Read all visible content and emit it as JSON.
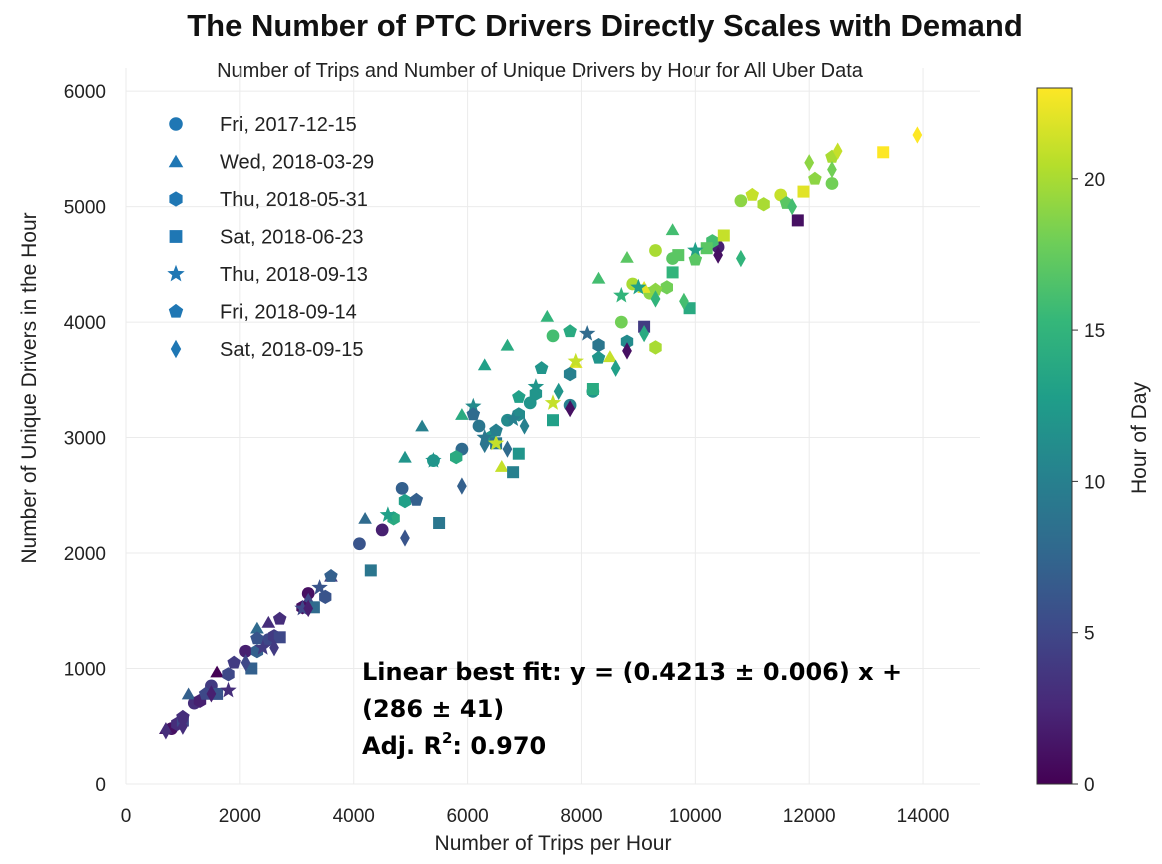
{
  "chart_data": {
    "type": "scatter",
    "title": "The Number of PTC Drivers Directly Scales with Demand",
    "subtitle": "Number of Trips and Number of Unique Drivers by Hour for All Uber Data",
    "xlabel": "Number of Trips per Hour",
    "ylabel": "Number of Unique Drivers in the Hour",
    "xlim": [
      0,
      15000
    ],
    "ylim": [
      0,
      6200
    ],
    "xticks": [
      0,
      2000,
      4000,
      6000,
      8000,
      10000,
      12000,
      14000
    ],
    "yticks": [
      0,
      1000,
      2000,
      3000,
      4000,
      5000,
      6000
    ],
    "grid": true,
    "legend_position": "top-left",
    "colorbar": {
      "label": "Hour of Day",
      "min": 0,
      "max": 23,
      "ticks": [
        0,
        5,
        10,
        15,
        20
      ],
      "colormap": "viridis"
    },
    "series": [
      {
        "name": "Fri, 2017-12-15",
        "marker": "circle",
        "points": [
          [
            800,
            480,
            1
          ],
          [
            1200,
            700,
            3
          ],
          [
            1500,
            850,
            4
          ],
          [
            2100,
            1150,
            2
          ],
          [
            2500,
            1250,
            5
          ],
          [
            3200,
            1650,
            1
          ],
          [
            4100,
            2080,
            6
          ],
          [
            4500,
            2200,
            2
          ],
          [
            4850,
            2560,
            7
          ],
          [
            5400,
            2800,
            13
          ],
          [
            5900,
            2900,
            8
          ],
          [
            6200,
            3100,
            9
          ],
          [
            6700,
            3150,
            11
          ],
          [
            7100,
            3300,
            12
          ],
          [
            7500,
            3880,
            16
          ],
          [
            7800,
            3280,
            10
          ],
          [
            8200,
            3400,
            12
          ],
          [
            8700,
            4000,
            18
          ],
          [
            8900,
            4330,
            20
          ],
          [
            9200,
            4250,
            19
          ],
          [
            9300,
            4620,
            20
          ],
          [
            9600,
            4550,
            17
          ],
          [
            10400,
            4650,
            2
          ],
          [
            10800,
            5050,
            19
          ],
          [
            11500,
            5100,
            21
          ],
          [
            12400,
            5200,
            18
          ]
        ]
      },
      {
        "name": "Wed, 2018-03-29",
        "marker": "triangle",
        "points": [
          [
            700,
            480,
            2
          ],
          [
            1100,
            780,
            7
          ],
          [
            1600,
            970,
            0
          ],
          [
            2300,
            1350,
            8
          ],
          [
            2500,
            1400,
            3
          ],
          [
            3200,
            1600,
            5
          ],
          [
            3600,
            1800,
            4
          ],
          [
            4200,
            2300,
            8
          ],
          [
            4900,
            2830,
            12
          ],
          [
            5200,
            3100,
            10
          ],
          [
            5900,
            3200,
            14
          ],
          [
            6300,
            3630,
            13
          ],
          [
            6700,
            3800,
            14
          ],
          [
            7400,
            4050,
            15
          ],
          [
            8300,
            4380,
            16
          ],
          [
            8800,
            4560,
            17
          ],
          [
            9600,
            4800,
            16
          ],
          [
            8500,
            3700,
            21
          ],
          [
            9100,
            4300,
            22
          ],
          [
            7900,
            3650,
            22
          ],
          [
            6600,
            2750,
            21
          ]
        ]
      },
      {
        "name": "Thu, 2018-05-31",
        "marker": "hexagon",
        "points": [
          [
            900,
            520,
            3
          ],
          [
            1300,
            720,
            2
          ],
          [
            1800,
            950,
            5
          ],
          [
            2300,
            1150,
            7
          ],
          [
            2600,
            1280,
            4
          ],
          [
            3100,
            1530,
            1
          ],
          [
            3500,
            1620,
            6
          ],
          [
            4700,
            2300,
            14
          ],
          [
            4900,
            2450,
            13
          ],
          [
            5800,
            2830,
            14
          ],
          [
            6400,
            3000,
            12
          ],
          [
            6900,
            3200,
            11
          ],
          [
            7200,
            3380,
            12
          ],
          [
            7800,
            3550,
            10
          ],
          [
            8300,
            3800,
            9
          ],
          [
            8800,
            3830,
            11
          ],
          [
            9300,
            3780,
            20
          ],
          [
            9500,
            4300,
            18
          ],
          [
            10300,
            4700,
            16
          ],
          [
            11200,
            5020,
            20
          ]
        ]
      },
      {
        "name": "Sat, 2018-06-23",
        "marker": "square",
        "points": [
          [
            1000,
            550,
            5
          ],
          [
            1600,
            780,
            6
          ],
          [
            2200,
            1000,
            7
          ],
          [
            2700,
            1270,
            5
          ],
          [
            3300,
            1530,
            8
          ],
          [
            4300,
            1850,
            9
          ],
          [
            5500,
            2260,
            9
          ],
          [
            6500,
            2950,
            9
          ],
          [
            6800,
            2700,
            10
          ],
          [
            6900,
            2860,
            12
          ],
          [
            7500,
            3150,
            13
          ],
          [
            8200,
            3420,
            14
          ],
          [
            9100,
            3960,
            4
          ],
          [
            9600,
            4430,
            15
          ],
          [
            9700,
            4580,
            17
          ],
          [
            10200,
            4640,
            17
          ],
          [
            10500,
            4750,
            21
          ],
          [
            11800,
            4880,
            1
          ],
          [
            11900,
            5130,
            22
          ],
          [
            13300,
            5470,
            23
          ],
          [
            9900,
            4120,
            14
          ]
        ]
      },
      {
        "name": "Thu, 2018-09-13",
        "marker": "star",
        "points": [
          [
            1800,
            810,
            3
          ],
          [
            2400,
            1180,
            4
          ],
          [
            3100,
            1520,
            5
          ],
          [
            3400,
            1700,
            6
          ],
          [
            4600,
            2330,
            13
          ],
          [
            5400,
            2800,
            12
          ],
          [
            6100,
            3270,
            11
          ],
          [
            6300,
            3000,
            9
          ],
          [
            6800,
            3160,
            10
          ],
          [
            7200,
            3440,
            12
          ],
          [
            7500,
            3300,
            21
          ],
          [
            7900,
            3660,
            21
          ],
          [
            8100,
            3900,
            8
          ],
          [
            8700,
            4230,
            15
          ],
          [
            9000,
            4300,
            13
          ],
          [
            10000,
            4620,
            13
          ],
          [
            6500,
            2950,
            21
          ]
        ]
      },
      {
        "name": "Fri, 2018-09-14",
        "marker": "pentagon",
        "points": [
          [
            1000,
            580,
            3
          ],
          [
            1400,
            780,
            5
          ],
          [
            1900,
            1050,
            4
          ],
          [
            2300,
            1260,
            6
          ],
          [
            2700,
            1430,
            3
          ],
          [
            3600,
            1800,
            7
          ],
          [
            5100,
            2460,
            7
          ],
          [
            5400,
            2800,
            12
          ],
          [
            6100,
            3200,
            8
          ],
          [
            6500,
            3060,
            10
          ],
          [
            6900,
            3350,
            13
          ],
          [
            7300,
            3600,
            12
          ],
          [
            7800,
            3920,
            14
          ],
          [
            8300,
            3690,
            12
          ],
          [
            9300,
            4280,
            19
          ],
          [
            10000,
            4540,
            17
          ],
          [
            11000,
            5100,
            21
          ],
          [
            11600,
            5030,
            17
          ],
          [
            12100,
            5240,
            19
          ],
          [
            12400,
            5430,
            20
          ]
        ]
      },
      {
        "name": "Sat, 2018-09-15",
        "marker": "diamond",
        "points": [
          [
            700,
            460,
            3
          ],
          [
            1000,
            500,
            3
          ],
          [
            1500,
            780,
            2
          ],
          [
            2100,
            1050,
            5
          ],
          [
            2600,
            1180,
            4
          ],
          [
            3200,
            1520,
            2
          ],
          [
            4900,
            2130,
            6
          ],
          [
            5900,
            2580,
            7
          ],
          [
            6300,
            2940,
            9
          ],
          [
            6700,
            2900,
            8
          ],
          [
            7000,
            3100,
            10
          ],
          [
            7600,
            3400,
            12
          ],
          [
            7800,
            3250,
            1
          ],
          [
            8600,
            3600,
            13
          ],
          [
            9100,
            3900,
            14
          ],
          [
            9300,
            4200,
            15
          ],
          [
            9800,
            4180,
            16
          ],
          [
            10400,
            4580,
            1
          ],
          [
            10800,
            4550,
            15
          ],
          [
            11700,
            5000,
            16
          ],
          [
            12000,
            5380,
            19
          ],
          [
            12500,
            5480,
            21
          ],
          [
            13900,
            5620,
            23
          ],
          [
            12400,
            5320,
            18
          ],
          [
            8800,
            3750,
            1
          ]
        ]
      }
    ]
  },
  "annotation": {
    "line1": "Linear best fit: y = (0.4213 ± 0.006) x +",
    "line2": "(286 ± 41)",
    "line3_prefix": "Adj. R",
    "line3_sup": "2",
    "line3_suffix": ": 0.970"
  },
  "colors": {
    "viridis": [
      "#440154",
      "#482878",
      "#3e4989",
      "#31688e",
      "#26828e",
      "#1f9e89",
      "#35b779",
      "#6ece58",
      "#b5de2b",
      "#fde725"
    ],
    "grid": "#ebebeb"
  }
}
